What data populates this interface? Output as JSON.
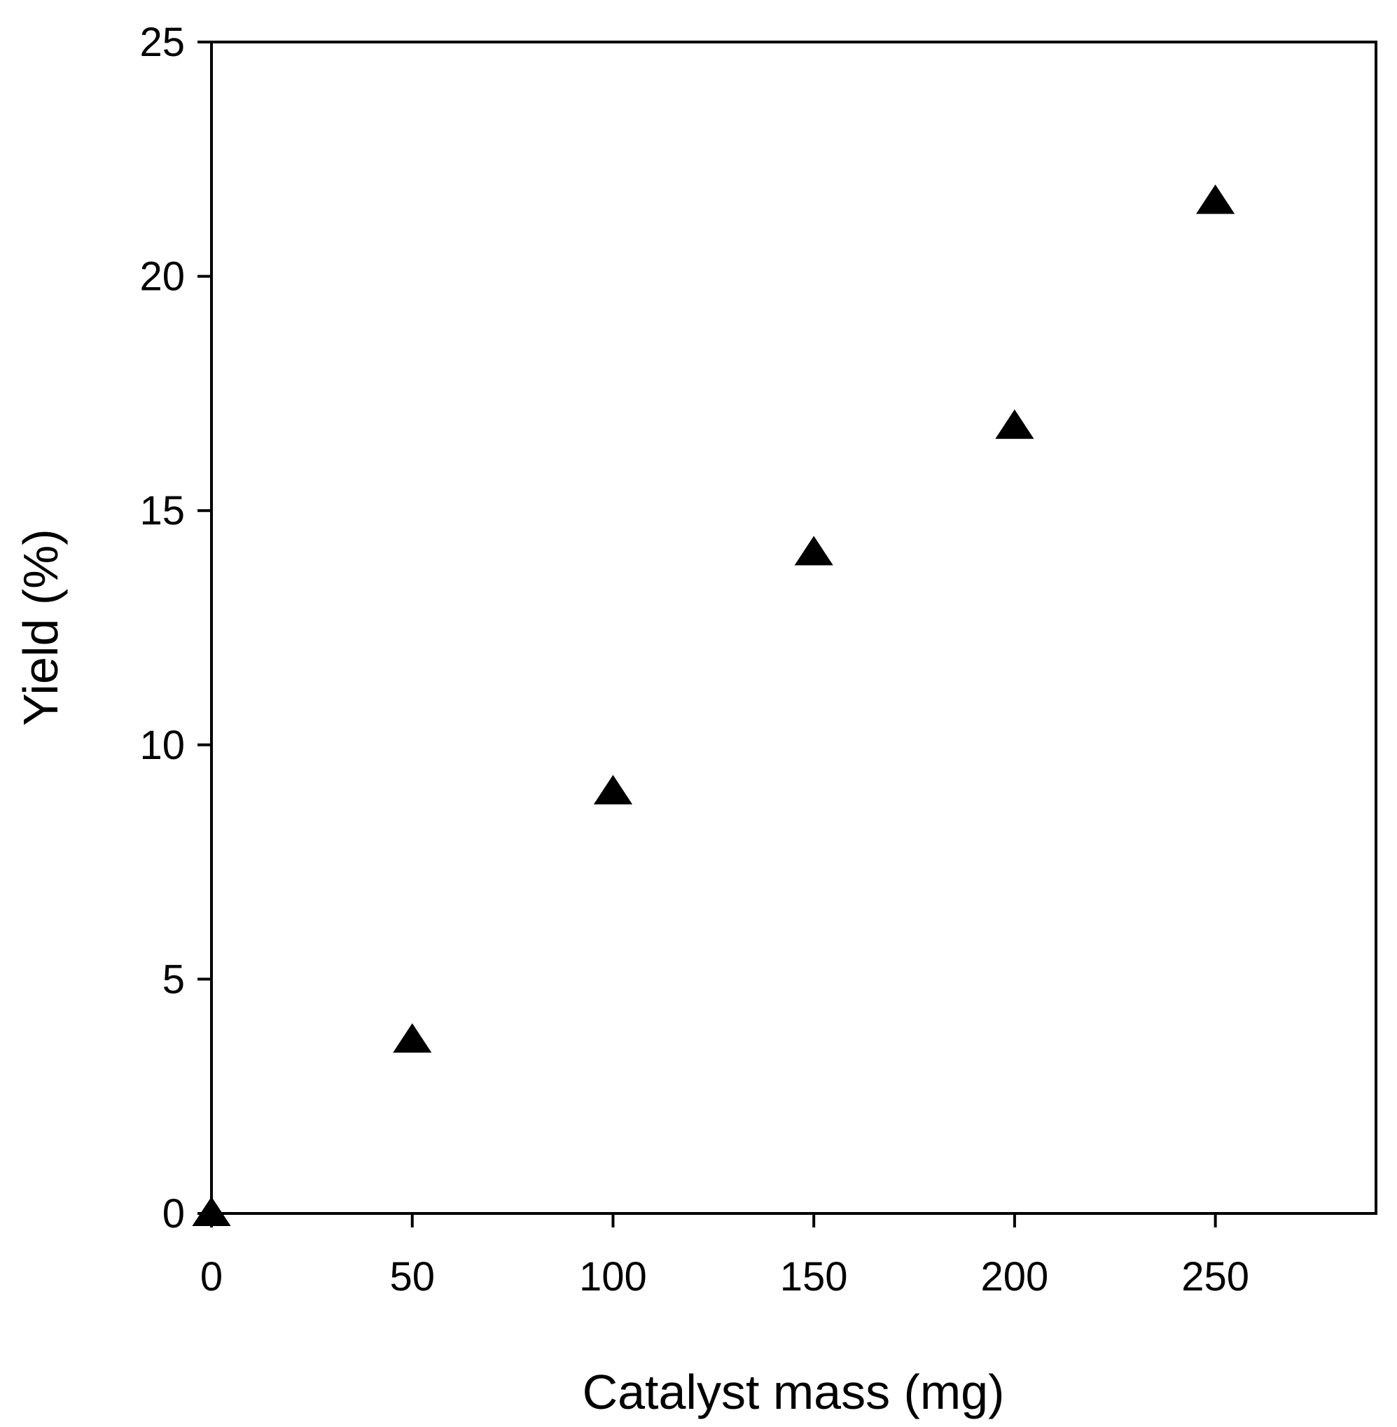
{
  "chart_data": {
    "type": "scatter",
    "title": "",
    "xlabel": "Catalyst mass (mg)",
    "ylabel": "Yield (%)",
    "xlim": [
      0,
      290
    ],
    "ylim": [
      0,
      25
    ],
    "x_ticks": [
      0,
      50,
      100,
      150,
      200,
      250
    ],
    "y_ticks": [
      0,
      5,
      10,
      15,
      20,
      25
    ],
    "grid": false,
    "legend": "none",
    "marker": "filled-triangle",
    "marker_color": "#000000",
    "points": [
      {
        "x": 0,
        "y": 0
      },
      {
        "x": 50,
        "y": 3.7
      },
      {
        "x": 100,
        "y": 9.0
      },
      {
        "x": 150,
        "y": 14.1
      },
      {
        "x": 200,
        "y": 16.8
      },
      {
        "x": 250,
        "y": 21.6
      }
    ]
  }
}
